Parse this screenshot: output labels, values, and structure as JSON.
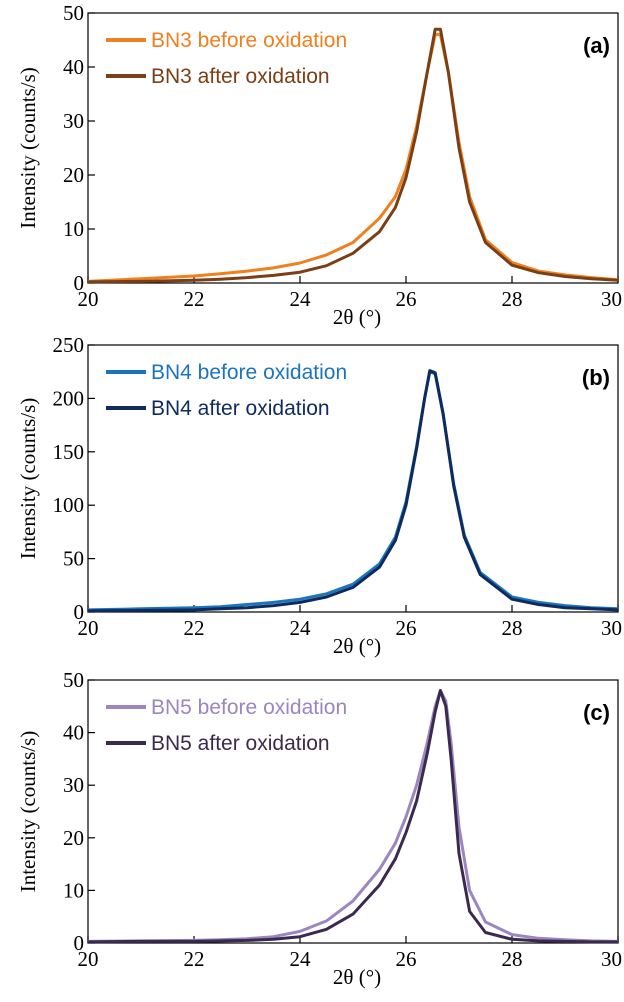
{
  "chart_data": [
    {
      "type": "line",
      "panel_label": "(a)",
      "xlabel": "2θ (°)",
      "ylabel": "Intensity (counts/s)",
      "xlim": [
        20,
        30
      ],
      "ylim": [
        0,
        50
      ],
      "xticks": [
        20,
        22,
        24,
        26,
        28,
        30
      ],
      "yticks": [
        0,
        10,
        20,
        30,
        40,
        50
      ],
      "legend_position": "top-left",
      "series": [
        {
          "name": "BN3  before oxidation",
          "color": "#F07F1E",
          "x": [
            20,
            21,
            22,
            22.5,
            23,
            23.5,
            24,
            24.5,
            25,
            25.5,
            25.8,
            26,
            26.2,
            26.4,
            26.55,
            26.65,
            26.8,
            27,
            27.2,
            27.5,
            28,
            28.5,
            29,
            29.5,
            30
          ],
          "y": [
            0.3,
            0.8,
            1.3,
            1.7,
            2.2,
            2.8,
            3.7,
            5.2,
            7.5,
            12,
            16,
            21,
            29,
            39,
            46,
            46,
            39,
            26,
            16,
            8,
            3.8,
            2.2,
            1.5,
            1.0,
            0.6
          ]
        },
        {
          "name": "BN3  after oxidation",
          "color": "#7A3F16",
          "x": [
            20,
            21,
            22,
            22.5,
            23,
            23.5,
            24,
            24.5,
            25,
            25.5,
            25.8,
            26,
            26.2,
            26.4,
            26.55,
            26.65,
            26.8,
            27,
            27.2,
            27.5,
            28,
            28.5,
            29,
            29.5,
            30
          ],
          "y": [
            0.2,
            0.3,
            0.5,
            0.7,
            1.0,
            1.4,
            2.0,
            3.2,
            5.5,
            9.5,
            14,
            19.5,
            28,
            39,
            47,
            47,
            39,
            25,
            15,
            7.5,
            3.3,
            1.9,
            1.2,
            0.8,
            0.5
          ]
        }
      ]
    },
    {
      "type": "line",
      "panel_label": "(b)",
      "xlabel": "2θ (°)",
      "ylabel": "Intensity (counts/s)",
      "xlim": [
        20,
        30
      ],
      "ylim": [
        0,
        250
      ],
      "xticks": [
        20,
        22,
        24,
        26,
        28,
        30
      ],
      "yticks": [
        0,
        50,
        100,
        150,
        200,
        250
      ],
      "legend_position": "top-left",
      "series": [
        {
          "name": "BN4  before oxidation",
          "color": "#1B75BC",
          "x": [
            20,
            21,
            22,
            22.5,
            23,
            23.5,
            24,
            24.5,
            25,
            25.5,
            25.8,
            26,
            26.2,
            26.35,
            26.45,
            26.55,
            26.7,
            26.9,
            27.1,
            27.4,
            28,
            28.5,
            29,
            29.5,
            30
          ],
          "y": [
            2,
            3,
            4,
            5,
            7,
            9,
            12,
            17,
            26,
            45,
            70,
            103,
            155,
            200,
            225,
            223,
            185,
            120,
            72,
            37,
            14,
            9,
            6,
            4,
            3
          ]
        },
        {
          "name": "BN4  after oxidation",
          "color": "#0F2A5F",
          "x": [
            20,
            21,
            22,
            22.5,
            23,
            23.5,
            24,
            24.5,
            25,
            25.5,
            25.8,
            26,
            26.2,
            26.35,
            26.45,
            26.55,
            26.7,
            26.9,
            27.1,
            27.4,
            28,
            28.5,
            29,
            29.5,
            30
          ],
          "y": [
            1,
            1.5,
            2,
            3,
            4,
            6,
            9,
            14,
            23,
            42,
            67,
            100,
            153,
            200,
            226,
            224,
            186,
            118,
            70,
            35,
            12,
            7,
            4,
            3,
            2
          ]
        }
      ]
    },
    {
      "type": "line",
      "panel_label": "(c)",
      "xlabel": "2θ (°)",
      "ylabel": "Intensity (counts/s)",
      "xlim": [
        20,
        30
      ],
      "ylim": [
        0,
        50
      ],
      "xticks": [
        20,
        22,
        24,
        26,
        28,
        30
      ],
      "yticks": [
        0,
        10,
        20,
        30,
        40,
        50
      ],
      "legend_position": "top-left",
      "series": [
        {
          "name": "BN5  before oxidation",
          "color": "#9B86C0",
          "x": [
            20,
            21,
            22,
            22.5,
            23,
            23.5,
            24,
            24.5,
            25,
            25.5,
            25.8,
            26,
            26.2,
            26.4,
            26.55,
            26.65,
            26.75,
            26.85,
            27,
            27.2,
            27.5,
            28,
            28.5,
            29,
            29.5,
            30
          ],
          "y": [
            0.3,
            0.4,
            0.5,
            0.6,
            0.8,
            1.2,
            2.2,
            4.2,
            8.0,
            14,
            19,
            24,
            30,
            38,
            45,
            48,
            46,
            38,
            22,
            10,
            4,
            1.6,
            0.9,
            0.6,
            0.4,
            0.3
          ]
        },
        {
          "name": "BN5  after oxidation",
          "color": "#3B2A4F",
          "x": [
            20,
            21,
            22,
            22.5,
            23,
            23.5,
            24,
            24.5,
            25,
            25.5,
            25.8,
            26,
            26.2,
            26.4,
            26.55,
            26.65,
            26.75,
            26.85,
            27,
            27.2,
            27.5,
            28,
            28.5,
            29,
            29.5,
            30
          ],
          "y": [
            0.2,
            0.3,
            0.3,
            0.4,
            0.5,
            0.7,
            1.2,
            2.6,
            5.5,
            11,
            16,
            21,
            27,
            36,
            44,
            48,
            45,
            35,
            17,
            6,
            2,
            0.7,
            0.4,
            0.3,
            0.2,
            0.2
          ]
        }
      ]
    }
  ]
}
